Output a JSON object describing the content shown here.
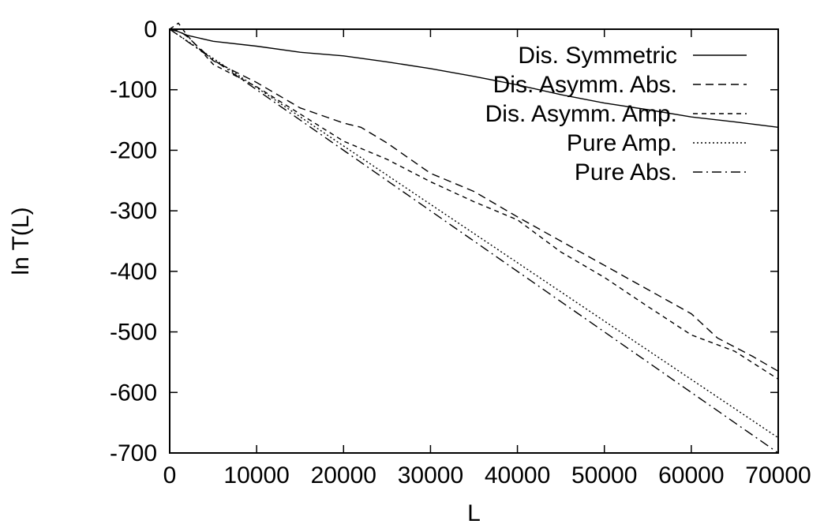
{
  "chart_data": {
    "type": "line",
    "xlabel": "L",
    "ylabel": "ln T(L)",
    "xlim": [
      0,
      70000
    ],
    "ylim": [
      -700,
      0
    ],
    "x_ticks": [
      0,
      10000,
      20000,
      30000,
      40000,
      50000,
      60000,
      70000
    ],
    "y_ticks": [
      0,
      -100,
      -200,
      -300,
      -400,
      -500,
      -600,
      -700
    ],
    "legend_position": "top-right",
    "reference_line_y": 0,
    "series": [
      {
        "name": "Dis. Symmetric",
        "style": "solid",
        "points": [
          [
            0,
            0
          ],
          [
            1000,
            -4
          ],
          [
            2000,
            -10
          ],
          [
            5000,
            -20
          ],
          [
            10000,
            -28
          ],
          [
            15000,
            -38
          ],
          [
            20000,
            -44
          ],
          [
            25000,
            -54
          ],
          [
            30000,
            -65
          ],
          [
            35000,
            -78
          ],
          [
            40000,
            -92
          ],
          [
            45000,
            -108
          ],
          [
            50000,
            -122
          ],
          [
            55000,
            -133
          ],
          [
            60000,
            -145
          ],
          [
            65000,
            -153
          ],
          [
            70000,
            -162
          ]
        ]
      },
      {
        "name": "Dis. Asymm. Abs.",
        "style": "dashed",
        "points": [
          [
            0,
            0
          ],
          [
            1000,
            -2
          ],
          [
            2000,
            -12
          ],
          [
            5000,
            -52
          ],
          [
            10000,
            -88
          ],
          [
            15000,
            -130
          ],
          [
            20000,
            -155
          ],
          [
            22000,
            -162
          ],
          [
            25000,
            -188
          ],
          [
            30000,
            -238
          ],
          [
            35000,
            -268
          ],
          [
            40000,
            -310
          ],
          [
            45000,
            -350
          ],
          [
            50000,
            -390
          ],
          [
            55000,
            -430
          ],
          [
            60000,
            -470
          ],
          [
            63000,
            -510
          ],
          [
            67000,
            -540
          ],
          [
            70000,
            -565
          ]
        ]
      },
      {
        "name": "Dis. Asymm. Amp.",
        "style": "short-dashed",
        "points": [
          [
            0,
            0
          ],
          [
            1000,
            10
          ],
          [
            2000,
            -10
          ],
          [
            5000,
            -58
          ],
          [
            10000,
            -95
          ],
          [
            15000,
            -140
          ],
          [
            20000,
            -185
          ],
          [
            25000,
            -215
          ],
          [
            30000,
            -252
          ],
          [
            35000,
            -285
          ],
          [
            40000,
            -315
          ],
          [
            45000,
            -368
          ],
          [
            50000,
            -410
          ],
          [
            55000,
            -458
          ],
          [
            60000,
            -505
          ],
          [
            65000,
            -532
          ],
          [
            70000,
            -578
          ]
        ]
      },
      {
        "name": "Pure Amp.",
        "style": "dotted",
        "points": [
          [
            0,
            0
          ],
          [
            70000,
            -675
          ]
        ]
      },
      {
        "name": "Pure Abs.",
        "style": "dash-dot",
        "points": [
          [
            0,
            0
          ],
          [
            70000,
            -700
          ]
        ]
      }
    ]
  }
}
